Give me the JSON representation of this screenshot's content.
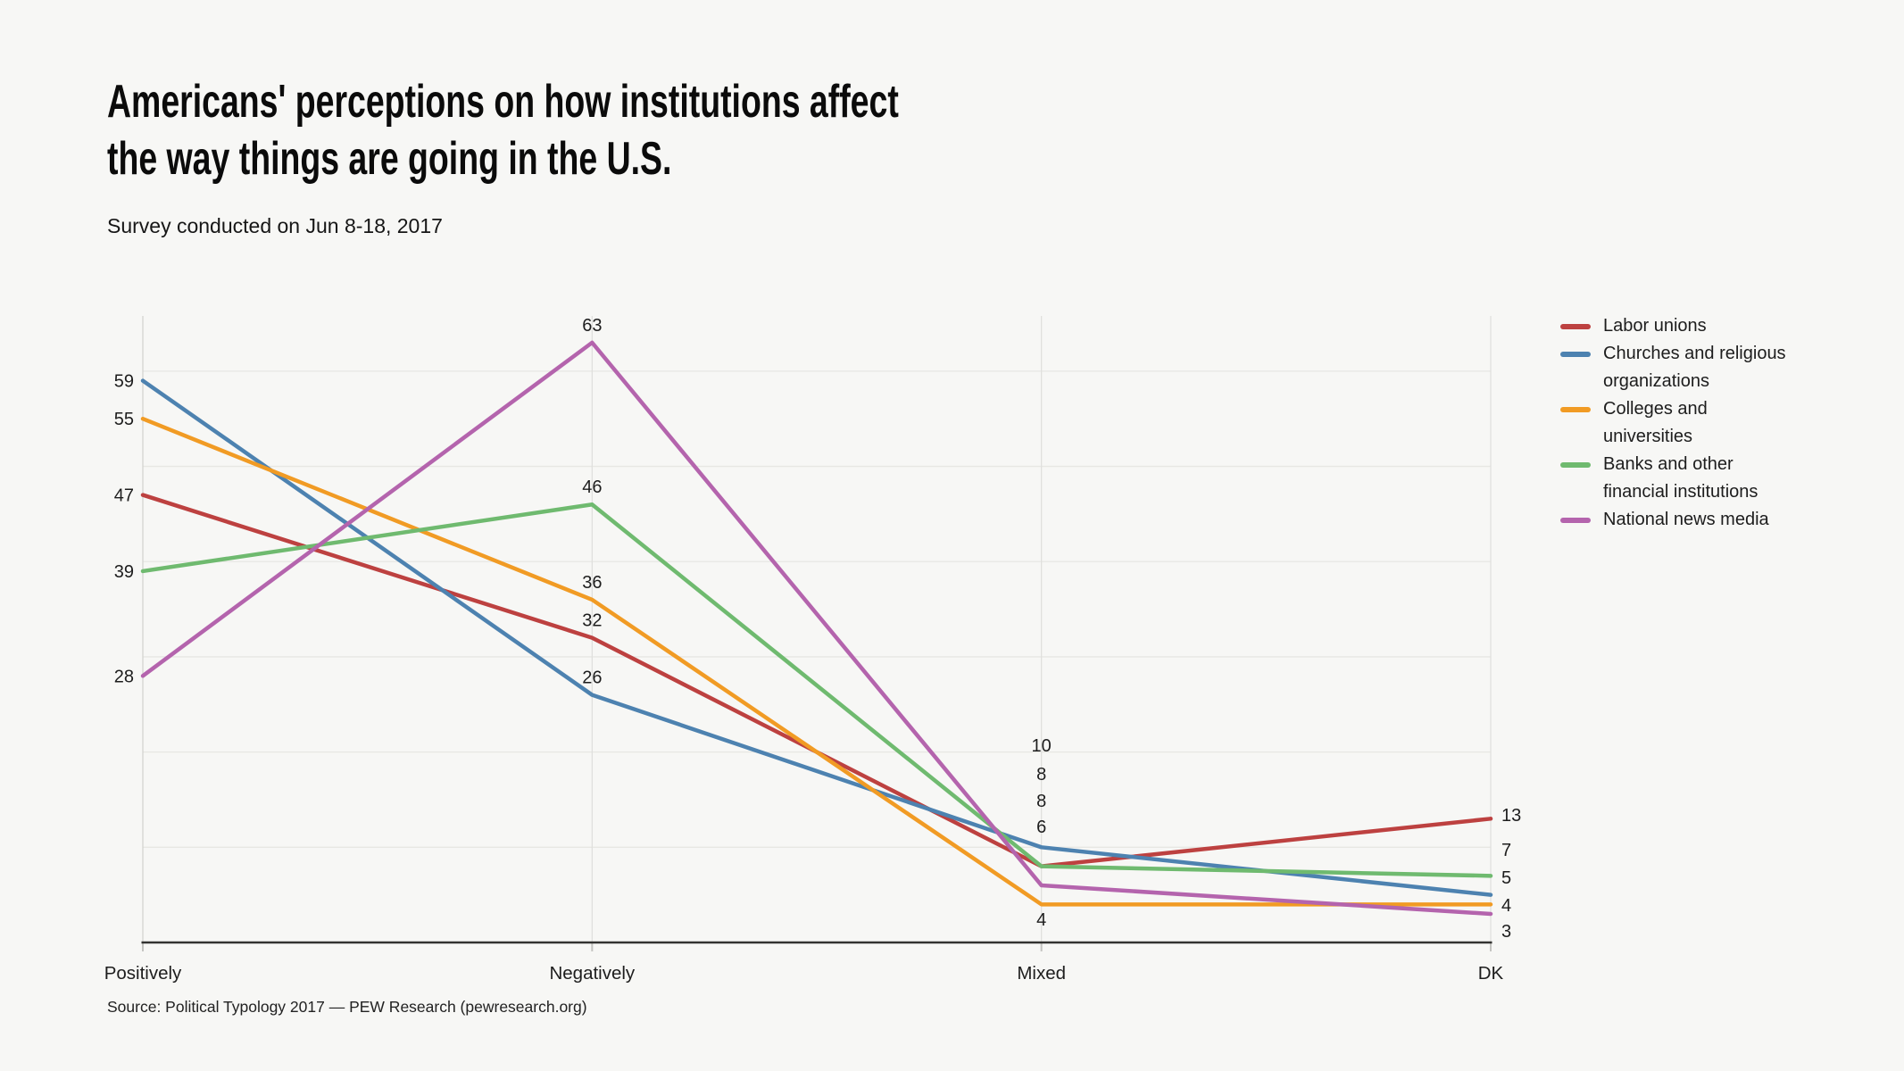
{
  "header": {
    "title": "Americans' perceptions on how institutions affect\nthe way things are going in the U.S.",
    "subtitle": "Survey conducted on Jun 8-18, 2017"
  },
  "footer": {
    "source": "Source: Political Typology 2017 — PEW Research (pewresearch.org)"
  },
  "colors": {
    "background": "#f7f7f5",
    "gridline": "#e7e7e3",
    "axis_line": "#333331",
    "text": "#1d1d1d"
  },
  "chart_data": {
    "type": "line",
    "title": "Americans' perceptions on how institutions affect the way things are going in the U.S.",
    "subtitle": "Survey conducted on Jun 8-18, 2017",
    "categories": [
      "Positively",
      "Negatively",
      "Mixed",
      "DK"
    ],
    "series": [
      {
        "name": "Labor unions",
        "color": "#bd4140",
        "values": [
          47,
          32,
          8,
          13
        ]
      },
      {
        "name": "Churches and religious organizations",
        "color": "#4d82b0",
        "values": [
          59,
          26,
          10,
          5
        ]
      },
      {
        "name": "Colleges and universities",
        "color": "#f19b24",
        "values": [
          55,
          36,
          4,
          4
        ]
      },
      {
        "name": "Banks and other financial institutions",
        "color": "#6fba6f",
        "values": [
          39,
          46,
          8,
          7
        ]
      },
      {
        "name": "National news media",
        "color": "#b464ad",
        "values": [
          28,
          63,
          6,
          3
        ]
      }
    ],
    "xlabel": "",
    "ylabel": "",
    "ylim": [
      0,
      65.8
    ],
    "grid": "horizontal gridlines every 10 units, vertical gridline at each category, no y tick labels",
    "legend_position": "right",
    "value_labels": "shown at every data point"
  }
}
